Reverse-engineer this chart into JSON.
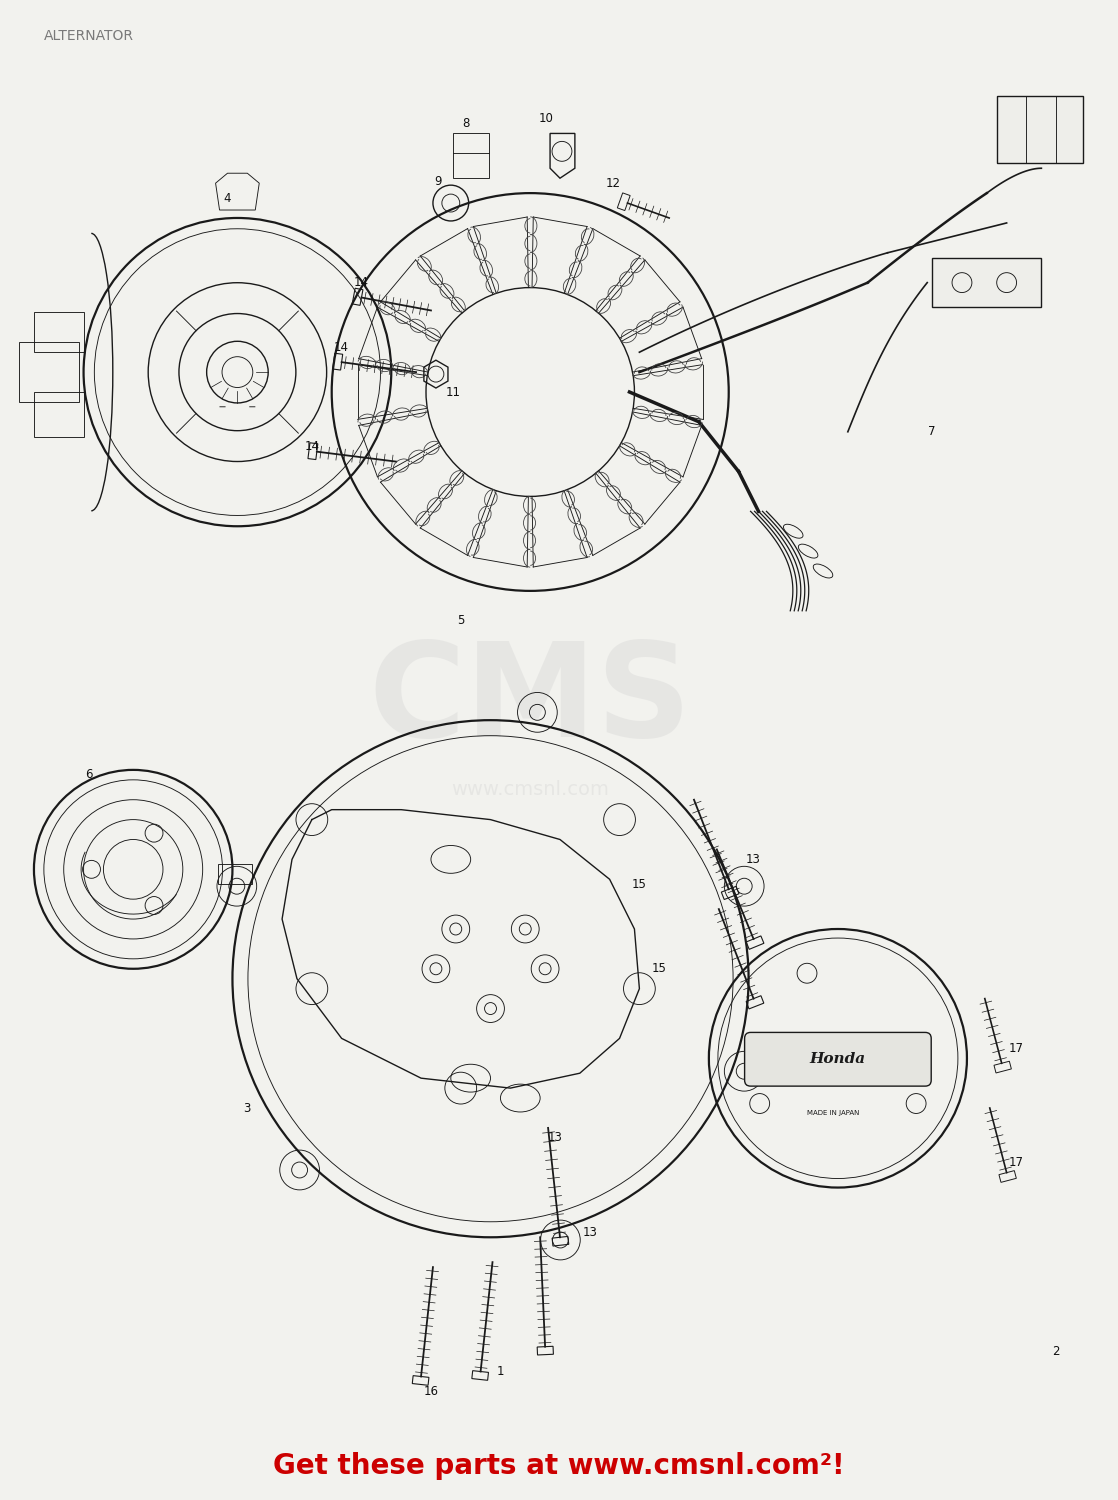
{
  "title": "ALTERNATOR",
  "title_color": "#7a7a7a",
  "title_fontsize": 10,
  "background_color": "#f2f2ee",
  "footer_text": "Get these parts at www.cmsnl.com²!",
  "footer_color": "#cc0000",
  "footer_fontsize": 20,
  "watermark_cms": "CMS",
  "watermark_url": "www.cmsnl.com",
  "watermark_color": "#cccccc",
  "label_fontsize": 8.5,
  "label_color": "#111111"
}
